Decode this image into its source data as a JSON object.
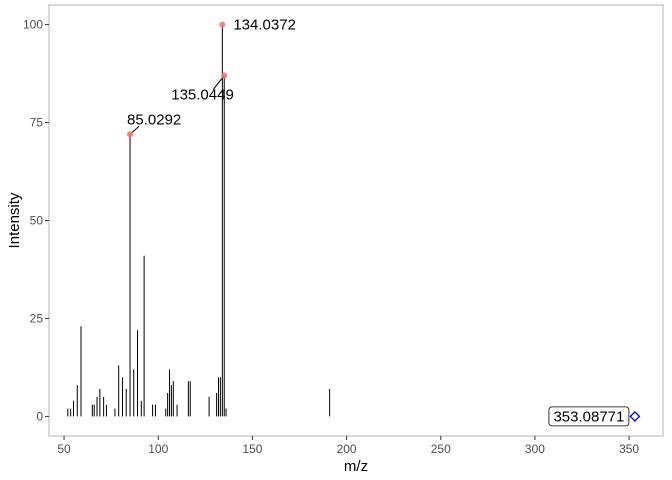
{
  "chart_data": {
    "type": "bar",
    "subtype": "mass-spectrum-stick",
    "xlabel": "m/z",
    "ylabel": "Intensity",
    "xlim": [
      42,
      368
    ],
    "ylim": [
      -5,
      105
    ],
    "x_ticks": [
      50,
      100,
      150,
      200,
      250,
      300,
      350
    ],
    "y_ticks": [
      0,
      25,
      50,
      75,
      100
    ],
    "grid": false,
    "panel_border": true,
    "colors": {
      "stick": "#000000",
      "highlight_point": "#f8766d",
      "precursor": "#0000cc",
      "axis_text": "#4d4d4d",
      "border": "#b3b3b3"
    },
    "peaks": [
      {
        "mz": 52,
        "intensity": 2
      },
      {
        "mz": 53.5,
        "intensity": 2
      },
      {
        "mz": 55,
        "intensity": 4
      },
      {
        "mz": 57,
        "intensity": 8
      },
      {
        "mz": 59,
        "intensity": 23
      },
      {
        "mz": 65,
        "intensity": 3
      },
      {
        "mz": 66,
        "intensity": 3
      },
      {
        "mz": 67.5,
        "intensity": 5
      },
      {
        "mz": 69,
        "intensity": 7
      },
      {
        "mz": 71,
        "intensity": 5
      },
      {
        "mz": 72.5,
        "intensity": 3
      },
      {
        "mz": 77,
        "intensity": 2
      },
      {
        "mz": 79,
        "intensity": 13
      },
      {
        "mz": 81,
        "intensity": 10
      },
      {
        "mz": 83,
        "intensity": 7
      },
      {
        "mz": 85.0292,
        "intensity": 72
      },
      {
        "mz": 87,
        "intensity": 12
      },
      {
        "mz": 89,
        "intensity": 22
      },
      {
        "mz": 91,
        "intensity": 4
      },
      {
        "mz": 92.5,
        "intensity": 41
      },
      {
        "mz": 97,
        "intensity": 3
      },
      {
        "mz": 98.5,
        "intensity": 3
      },
      {
        "mz": 104,
        "intensity": 2
      },
      {
        "mz": 105,
        "intensity": 6
      },
      {
        "mz": 106,
        "intensity": 12
      },
      {
        "mz": 107,
        "intensity": 8
      },
      {
        "mz": 108,
        "intensity": 9
      },
      {
        "mz": 110,
        "intensity": 3
      },
      {
        "mz": 116,
        "intensity": 9
      },
      {
        "mz": 117,
        "intensity": 9
      },
      {
        "mz": 127,
        "intensity": 5
      },
      {
        "mz": 131,
        "intensity": 6
      },
      {
        "mz": 132,
        "intensity": 10
      },
      {
        "mz": 133,
        "intensity": 10
      },
      {
        "mz": 134.0372,
        "intensity": 100
      },
      {
        "mz": 135.0449,
        "intensity": 87
      },
      {
        "mz": 136,
        "intensity": 2
      },
      {
        "mz": 191,
        "intensity": 7
      }
    ],
    "labeled_peaks": [
      {
        "mz": 134.0372,
        "intensity": 100,
        "label": "134.0372",
        "anchor": "right"
      },
      {
        "mz": 135.0449,
        "intensity": 87,
        "label": "135.0449",
        "anchor": "below-left"
      },
      {
        "mz": 85.0292,
        "intensity": 72,
        "label": "85.0292",
        "anchor": "above"
      }
    ],
    "precursor": {
      "mz": 353.08771,
      "intensity": 0,
      "label": "353.08771"
    }
  }
}
